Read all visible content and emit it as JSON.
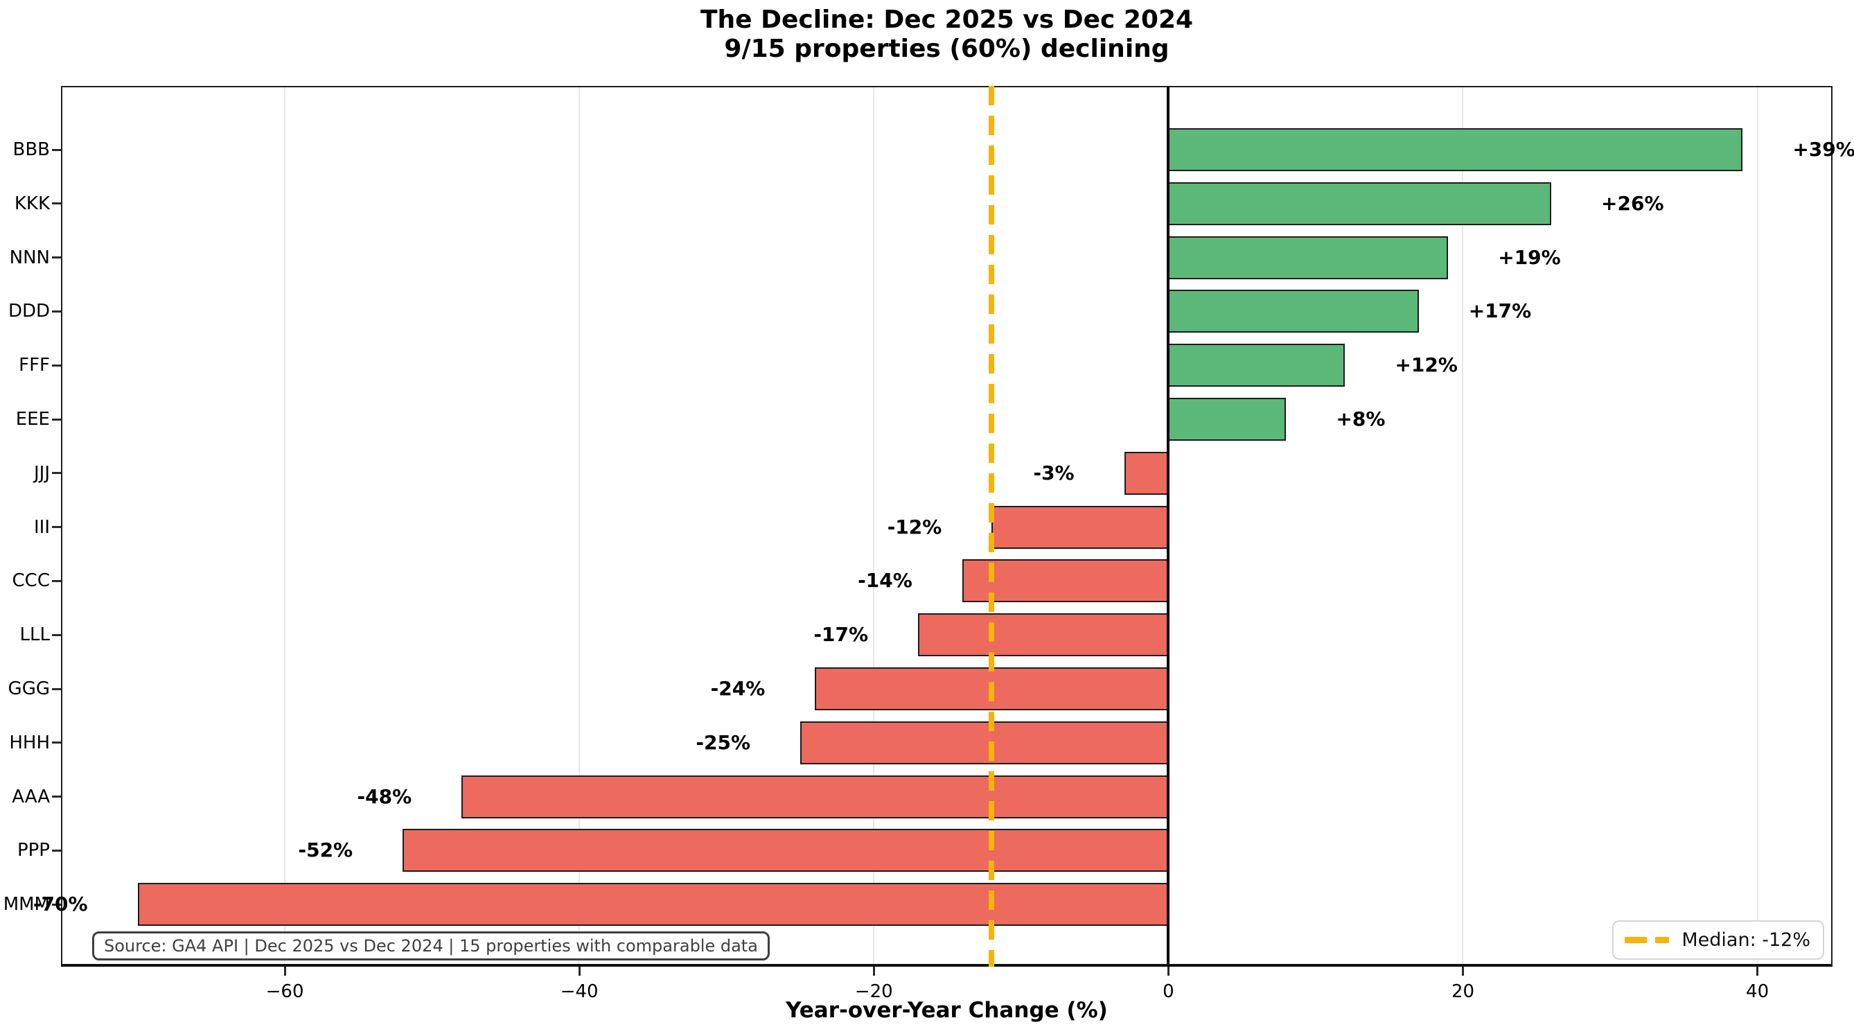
{
  "title": {
    "line1": "The Decline: Dec 2025 vs Dec 2024",
    "line2": "9/15 properties (60%) declining"
  },
  "colors": {
    "positive_bar": "#5cb878",
    "negative_bar": "#ed6a5f",
    "bar_edge": "#1c1c1c",
    "median_line": "#f6b40b",
    "gridline": "#e7e7e7",
    "spine": "#1f1f1f",
    "zero_line": "#000000",
    "source_text": "#3f3f3f"
  },
  "chart_data": {
    "type": "bar",
    "orientation": "horizontal",
    "title": "The Decline: Dec 2025 vs Dec 2024",
    "subtitle": "9/15 properties (60%) declining",
    "xlabel": "Year-over-Year Change (%)",
    "ylabel": "",
    "categories": [
      "BBB",
      "KKK",
      "NNN",
      "DDD",
      "FFF",
      "EEE",
      "JJJ",
      "III",
      "CCC",
      "LLL",
      "GGG",
      "HHH",
      "AAA",
      "PPP",
      "MMM"
    ],
    "values": [
      39,
      26,
      19,
      17,
      12,
      8,
      -3,
      -12,
      -14,
      -17,
      -24,
      -25,
      -48,
      -52,
      -70
    ],
    "value_labels": [
      "+39%",
      "+26%",
      "+19%",
      "+17%",
      "+12%",
      "+8%",
      "-3%",
      "-12%",
      "-14%",
      "-17%",
      "-24%",
      "-25%",
      "-48%",
      "-52%",
      "-70%"
    ],
    "xlim": [
      -75.2,
      45.1
    ],
    "xticks": [
      -60,
      -40,
      -20,
      0,
      20,
      40
    ],
    "xtick_labels": [
      "−60",
      "−40",
      "−20",
      "0",
      "20",
      "40"
    ],
    "grid": "vertical-only",
    "median": {
      "value": -12,
      "label": "Median: -12%",
      "style": "dashed"
    },
    "legend_position": "lower-right",
    "annotation": "Source: GA4 API | Dec 2025 vs Dec 2024 | 15 properties with comparable data"
  }
}
